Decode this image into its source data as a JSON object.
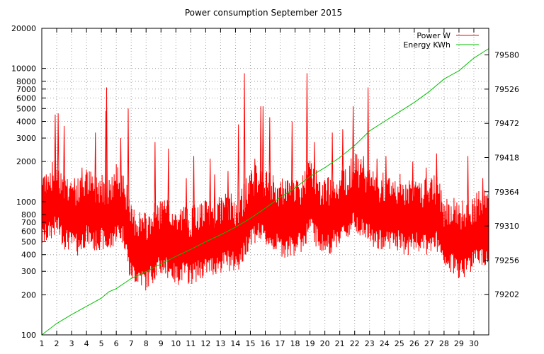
{
  "chart_data": {
    "type": "line",
    "title": "Power consumption September 2015",
    "xlabel": "",
    "ylabel": "",
    "x_axis": {
      "range": [
        1,
        31
      ],
      "ticks": [
        "1",
        "2",
        "3",
        "4",
        "5",
        "6",
        "7",
        "8",
        "9",
        "10",
        "11",
        "12",
        "13",
        "14",
        "15",
        "16",
        "17",
        "18",
        "19",
        "20",
        "21",
        "22",
        "23",
        "24",
        "25",
        "26",
        "27",
        "28",
        "29",
        "30"
      ]
    },
    "y_axis_left": {
      "scale": "log",
      "range": [
        100,
        20000
      ],
      "ticks": [
        "100",
        "200",
        "300",
        "400",
        "500",
        "600",
        "700",
        "800",
        "1000",
        "2000",
        "3000",
        "4000",
        "5000",
        "6000",
        "7000",
        "8000",
        "10000",
        "20000"
      ]
    },
    "y_axis_right": {
      "scale": "linear",
      "range": [
        79138,
        79622
      ],
      "ticks": [
        "79202",
        "79256",
        "79310",
        "79364",
        "79418",
        "79472",
        "79526",
        "79580"
      ]
    },
    "grid": true,
    "legend_position": "top-right",
    "series": [
      {
        "name": "Power W",
        "axis": "left",
        "color": "#ff0000",
        "x": [
          1,
          1.5,
          2,
          2.5,
          3,
          3.5,
          4,
          4.5,
          5,
          5.5,
          6,
          6.5,
          6.9,
          7.5,
          8,
          8.5,
          9,
          9.5,
          10,
          10.5,
          11,
          11.5,
          12,
          12.5,
          13,
          13.5,
          14,
          14.5,
          15,
          15.5,
          16,
          16.5,
          17,
          17.5,
          18,
          18.5,
          19,
          19.5,
          20,
          20.5,
          21,
          21.5,
          22,
          22.5,
          23,
          23.5,
          24,
          24.5,
          25,
          25.5,
          26,
          26.5,
          27,
          27.5,
          28,
          28.5,
          29,
          29.5,
          30,
          30.5,
          31
        ],
        "y": [
          800,
          900,
          1000,
          800,
          750,
          700,
          850,
          750,
          800,
          700,
          900,
          850,
          450,
          420,
          380,
          450,
          500,
          480,
          420,
          450,
          430,
          460,
          480,
          500,
          520,
          550,
          520,
          600,
          850,
          900,
          800,
          750,
          700,
          680,
          720,
          750,
          1000,
          800,
          700,
          750,
          850,
          900,
          1100,
          950,
          850,
          750,
          800,
          780,
          760,
          700,
          750,
          720,
          700,
          760,
          500,
          520,
          480,
          500,
          550,
          600,
          580
        ],
        "spikes": [
          {
            "x": 1.1,
            "y": 1500
          },
          {
            "x": 1.3,
            "y": 1600
          },
          {
            "x": 1.9,
            "y": 4500
          },
          {
            "x": 2.1,
            "y": 4600
          },
          {
            "x": 2.5,
            "y": 3700
          },
          {
            "x": 3.2,
            "y": 1500
          },
          {
            "x": 3.7,
            "y": 1800
          },
          {
            "x": 4.6,
            "y": 3300
          },
          {
            "x": 5.3,
            "y": 4800
          },
          {
            "x": 5.35,
            "y": 7200
          },
          {
            "x": 6.8,
            "y": 5000
          },
          {
            "x": 6.3,
            "y": 3000
          },
          {
            "x": 8.6,
            "y": 2800
          },
          {
            "x": 9.5,
            "y": 2500
          },
          {
            "x": 10.7,
            "y": 1500
          },
          {
            "x": 11.2,
            "y": 2200
          },
          {
            "x": 12.3,
            "y": 2100
          },
          {
            "x": 12.6,
            "y": 1600
          },
          {
            "x": 13.5,
            "y": 1700
          },
          {
            "x": 14.2,
            "y": 3800
          },
          {
            "x": 14.6,
            "y": 9200
          },
          {
            "x": 15.3,
            "y": 2100
          },
          {
            "x": 15.7,
            "y": 5200
          },
          {
            "x": 15.85,
            "y": 5200
          },
          {
            "x": 16.3,
            "y": 4300
          },
          {
            "x": 17.8,
            "y": 4000
          },
          {
            "x": 18.8,
            "y": 9200
          },
          {
            "x": 19.3,
            "y": 2800
          },
          {
            "x": 20.5,
            "y": 3300
          },
          {
            "x": 21.2,
            "y": 3500
          },
          {
            "x": 21.9,
            "y": 5200
          },
          {
            "x": 22.6,
            "y": 2200
          },
          {
            "x": 22.9,
            "y": 7200
          },
          {
            "x": 23.5,
            "y": 2100
          },
          {
            "x": 24.1,
            "y": 2200
          },
          {
            "x": 25.9,
            "y": 2000
          },
          {
            "x": 26.8,
            "y": 1800
          },
          {
            "x": 27.5,
            "y": 2300
          },
          {
            "x": 29.6,
            "y": 2200
          },
          {
            "x": 30.6,
            "y": 1500
          }
        ]
      },
      {
        "name": "Energy KWh",
        "axis": "right",
        "color": "#00c000",
        "x": [
          1,
          2,
          3,
          4,
          5,
          5.5,
          6,
          7,
          8,
          9,
          10,
          11,
          12,
          13,
          14,
          15,
          16,
          17,
          18,
          19,
          20,
          21,
          22,
          23,
          24,
          25,
          26,
          27,
          28,
          29,
          30,
          31
        ],
        "y": [
          79138,
          79156,
          79170,
          79183,
          79196,
          79206,
          79211,
          79227,
          79238,
          79250,
          79262,
          79273,
          79285,
          79296,
          79308,
          79322,
          79338,
          79355,
          79370,
          79388,
          79402,
          79418,
          79437,
          79460,
          79475,
          79490,
          79505,
          79522,
          79542,
          79555,
          79575,
          79590
        ]
      }
    ]
  }
}
